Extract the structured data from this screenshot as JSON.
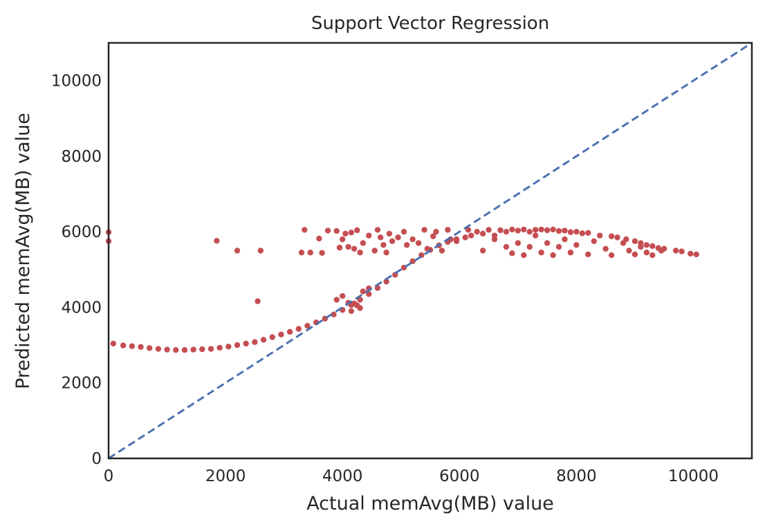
{
  "chart_data": {
    "type": "scatter",
    "title": "Support Vector Regression",
    "xlabel": "Actual memAvg(MB) value",
    "ylabel": "Predicted memAvg(MB) value",
    "xlim": [
      0,
      11000
    ],
    "ylim": [
      0,
      11000
    ],
    "xticks": [
      0,
      2000,
      4000,
      6000,
      8000,
      10000
    ],
    "yticks": [
      0,
      2000,
      4000,
      6000,
      8000,
      10000
    ],
    "xtick_labels": [
      "0",
      "2000",
      "4000",
      "6000",
      "8000",
      "10000"
    ],
    "ytick_labels": [
      "0",
      "2000",
      "4000",
      "6000",
      "8000",
      "10000"
    ],
    "grid": false,
    "legend": "none",
    "colors": {
      "points": "#c44e52",
      "reference_line": "#4c72b0",
      "axes": "#262626"
    },
    "reference_line": {
      "style": "dashed",
      "from": [
        0,
        0
      ],
      "to": [
        11000,
        11000
      ]
    },
    "series": [
      {
        "points": [
          [
            0,
            5990
          ],
          [
            0,
            5750
          ],
          [
            80,
            3040
          ],
          [
            250,
            2990
          ],
          [
            400,
            2970
          ],
          [
            550,
            2950
          ],
          [
            700,
            2920
          ],
          [
            850,
            2900
          ],
          [
            1000,
            2880
          ],
          [
            1150,
            2870
          ],
          [
            1300,
            2870
          ],
          [
            1450,
            2880
          ],
          [
            1600,
            2890
          ],
          [
            1750,
            2900
          ],
          [
            1900,
            2930
          ],
          [
            2050,
            2960
          ],
          [
            2200,
            3000
          ],
          [
            2350,
            3040
          ],
          [
            2500,
            3080
          ],
          [
            2650,
            3140
          ],
          [
            2800,
            3210
          ],
          [
            2950,
            3280
          ],
          [
            3100,
            3350
          ],
          [
            3250,
            3430
          ],
          [
            3400,
            3510
          ],
          [
            3550,
            3600
          ],
          [
            3700,
            3700
          ],
          [
            3850,
            3810
          ],
          [
            4000,
            3930
          ],
          [
            4150,
            4060
          ],
          [
            4300,
            4200
          ],
          [
            4450,
            4350
          ],
          [
            4600,
            4510
          ],
          [
            4750,
            4680
          ],
          [
            4900,
            4860
          ],
          [
            5050,
            5050
          ],
          [
            5200,
            5220
          ],
          [
            5350,
            5380
          ],
          [
            5500,
            5520
          ],
          [
            5650,
            5640
          ],
          [
            5800,
            5730
          ],
          [
            5950,
            5800
          ],
          [
            6100,
            5850
          ],
          [
            1850,
            5760
          ],
          [
            2200,
            5500
          ],
          [
            2550,
            4160
          ],
          [
            2600,
            5500
          ],
          [
            3300,
            5450
          ],
          [
            3350,
            6050
          ],
          [
            3450,
            5450
          ],
          [
            3600,
            5820
          ],
          [
            3650,
            5440
          ],
          [
            3750,
            6030
          ],
          [
            3900,
            6020
          ],
          [
            3950,
            5580
          ],
          [
            4000,
            5800
          ],
          [
            4050,
            5950
          ],
          [
            4100,
            5600
          ],
          [
            4150,
            5980
          ],
          [
            4200,
            5550
          ],
          [
            4250,
            6040
          ],
          [
            4300,
            5450
          ],
          [
            4350,
            5700
          ],
          [
            4450,
            5900
          ],
          [
            4550,
            5500
          ],
          [
            4600,
            6050
          ],
          [
            4650,
            5850
          ],
          [
            4700,
            5650
          ],
          [
            4750,
            5450
          ],
          [
            4800,
            5950
          ],
          [
            4850,
            5750
          ],
          [
            4950,
            5850
          ],
          [
            5050,
            6000
          ],
          [
            5100,
            5650
          ],
          [
            5200,
            5800
          ],
          [
            5300,
            5700
          ],
          [
            5400,
            6050
          ],
          [
            5450,
            5550
          ],
          [
            5550,
            5880
          ],
          [
            5600,
            6000
          ],
          [
            5700,
            5500
          ],
          [
            5800,
            6050
          ],
          [
            5850,
            5800
          ],
          [
            5950,
            5750
          ],
          [
            3900,
            4200
          ],
          [
            4000,
            4300
          ],
          [
            4100,
            4120
          ],
          [
            4150,
            3900
          ],
          [
            4200,
            4100
          ],
          [
            4250,
            4050
          ],
          [
            4300,
            3980
          ],
          [
            4350,
            4420
          ],
          [
            4450,
            4500
          ],
          [
            6150,
            6050
          ],
          [
            6200,
            5900
          ],
          [
            6300,
            6000
          ],
          [
            6400,
            5950
          ],
          [
            6500,
            6050
          ],
          [
            6600,
            5900
          ],
          [
            6700,
            6040
          ],
          [
            6800,
            6000
          ],
          [
            6900,
            6060
          ],
          [
            7000,
            6030
          ],
          [
            7100,
            6060
          ],
          [
            7200,
            6000
          ],
          [
            7300,
            6050
          ],
          [
            7400,
            6060
          ],
          [
            7500,
            6040
          ],
          [
            7600,
            6060
          ],
          [
            7700,
            6020
          ],
          [
            7800,
            6030
          ],
          [
            7900,
            5990
          ],
          [
            8000,
            6000
          ],
          [
            8100,
            5960
          ],
          [
            8200,
            5970
          ],
          [
            8400,
            5900
          ],
          [
            8600,
            5880
          ],
          [
            8700,
            5850
          ],
          [
            8850,
            5800
          ],
          [
            9000,
            5750
          ],
          [
            9100,
            5700
          ],
          [
            9200,
            5650
          ],
          [
            9300,
            5620
          ],
          [
            9400,
            5570
          ],
          [
            9500,
            5550
          ],
          [
            9700,
            5500
          ],
          [
            9800,
            5480
          ],
          [
            9950,
            5420
          ],
          [
            10050,
            5400
          ],
          [
            6400,
            5500
          ],
          [
            6600,
            5800
          ],
          [
            6800,
            5600
          ],
          [
            6900,
            5430
          ],
          [
            7000,
            5700
          ],
          [
            7100,
            5380
          ],
          [
            7200,
            5600
          ],
          [
            7300,
            5900
          ],
          [
            7400,
            5450
          ],
          [
            7500,
            5700
          ],
          [
            7600,
            5380
          ],
          [
            7700,
            5600
          ],
          [
            7800,
            5800
          ],
          [
            7900,
            5450
          ],
          [
            8000,
            5650
          ],
          [
            8200,
            5400
          ],
          [
            8300,
            5750
          ],
          [
            8500,
            5550
          ],
          [
            8600,
            5380
          ],
          [
            8800,
            5700
          ],
          [
            8900,
            5500
          ],
          [
            9000,
            5400
          ],
          [
            9100,
            5600
          ],
          [
            9200,
            5450
          ],
          [
            9300,
            5380
          ],
          [
            9450,
            5500
          ]
        ]
      }
    ]
  }
}
